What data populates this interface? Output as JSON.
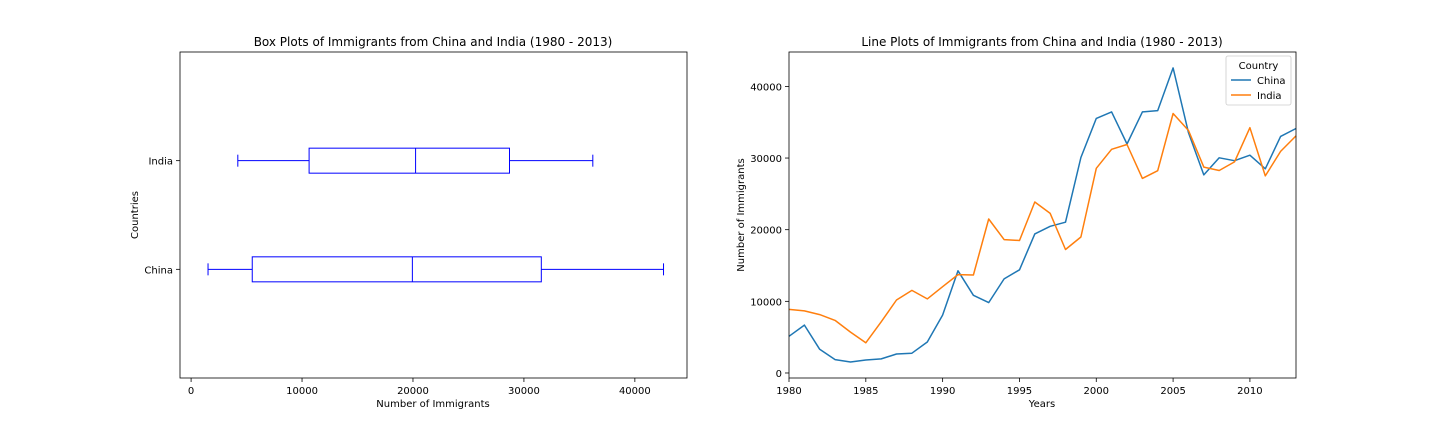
{
  "chart_data": [
    {
      "type": "box",
      "orientation": "horizontal",
      "title": "Box Plots of Immigrants from China and India (1980 - 2013)",
      "xlabel": "Number of Immigrants",
      "ylabel": "Countries",
      "xlim": [
        -1000,
        44700
      ],
      "xticks": [
        0,
        10000,
        20000,
        30000,
        40000
      ],
      "categories": [
        "China",
        "India"
      ],
      "box_color": "#0000ff",
      "boxes": [
        {
          "name": "China",
          "whisker_low": 1527,
          "q1": 5512,
          "median": 19945,
          "q3": 31568,
          "whisker_high": 42584
        },
        {
          "name": "India",
          "whisker_low": 4211,
          "q1": 10637,
          "median": 20235,
          "q3": 28700,
          "whisker_high": 36210
        }
      ]
    },
    {
      "type": "line",
      "title": "Line Plots of Immigrants from China and India (1980 - 2013)",
      "xlabel": "Years",
      "ylabel": "Number of Immigrants",
      "xlim": [
        1980,
        2013
      ],
      "ylim": [
        -700,
        44800
      ],
      "xticks": [
        1980,
        1985,
        1990,
        1995,
        2000,
        2005,
        2010
      ],
      "yticks": [
        0,
        10000,
        20000,
        30000,
        40000
      ],
      "legend": {
        "title": "Country",
        "position": "top-right"
      },
      "x": [
        1980,
        1981,
        1982,
        1983,
        1984,
        1985,
        1986,
        1987,
        1988,
        1989,
        1990,
        1991,
        1992,
        1993,
        1994,
        1995,
        1996,
        1997,
        1998,
        1999,
        2000,
        2001,
        2002,
        2003,
        2004,
        2005,
        2006,
        2007,
        2008,
        2009,
        2010,
        2011,
        2012,
        2013
      ],
      "series": [
        {
          "name": "China",
          "color": "#1f77b4",
          "values": [
            5123,
            6682,
            3308,
            1863,
            1527,
            1816,
            1960,
            2643,
            2758,
            4323,
            8076,
            14255,
            10846,
            9817,
            13128,
            14398,
            19415,
            20475,
            21049,
            30069,
            35529,
            36434,
            31961,
            36439,
            36619,
            42584,
            33518,
            27642,
            30037,
            29622,
            30391,
            28502,
            33024,
            34129
          ]
        },
        {
          "name": "India",
          "color": "#ff7f0e",
          "values": [
            8880,
            8670,
            8147,
            7338,
            5704,
            4211,
            7150,
            10189,
            11522,
            10343,
            12041,
            13734,
            13673,
            21496,
            18620,
            18489,
            23859,
            22268,
            17241,
            18974,
            28572,
            31223,
            31889,
            27155,
            28235,
            36210,
            33848,
            28742,
            28261,
            29456,
            34235,
            27509,
            30933,
            33087
          ]
        }
      ]
    }
  ]
}
